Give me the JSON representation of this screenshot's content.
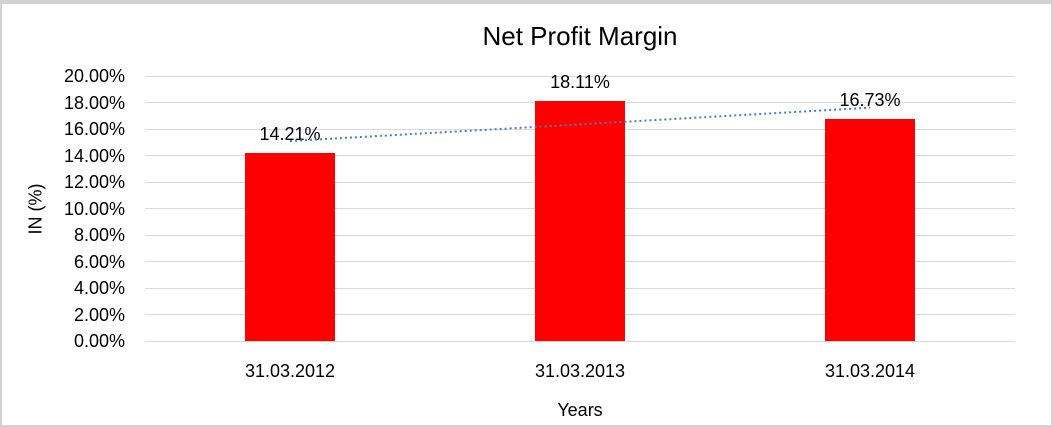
{
  "chart_data": {
    "type": "bar",
    "title": "Net Profit Margin",
    "xlabel": "Years",
    "ylabel": "IN (%)",
    "categories": [
      "31.03.2012",
      "31.03.2013",
      "31.03.2014"
    ],
    "values": [
      14.21,
      18.11,
      16.73
    ],
    "data_labels": [
      "14.21%",
      "18.11%",
      "16.73%"
    ],
    "ylim": [
      0,
      20
    ],
    "ytick_step": 2,
    "ytick_labels": [
      "0.00%",
      "2.00%",
      "4.00%",
      "6.00%",
      "8.00%",
      "10.00%",
      "12.00%",
      "14.00%",
      "16.00%",
      "18.00%",
      "20.00%"
    ],
    "grid": true,
    "legend": "none",
    "bar_color": "#FF0000",
    "gridline_color": "#D9D9D9",
    "trendline": {
      "kind": "linear",
      "style": "dotted",
      "color": "#4A7EBB"
    }
  }
}
